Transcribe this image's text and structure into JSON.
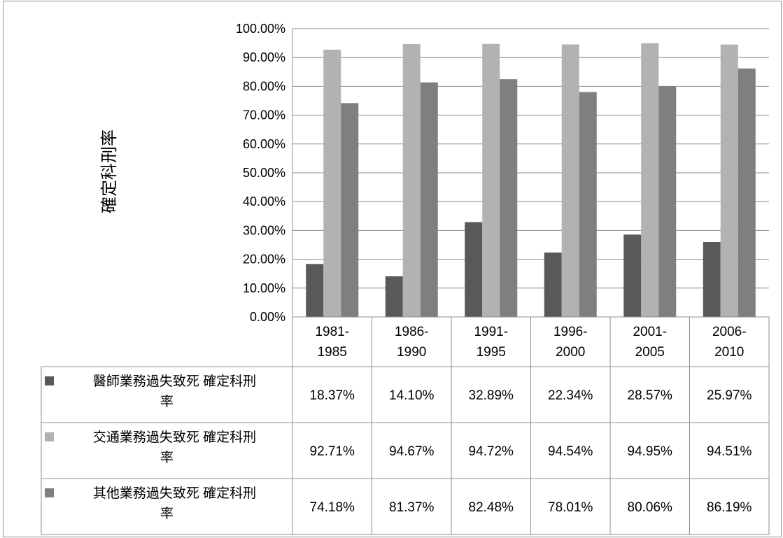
{
  "chart_data": {
    "type": "bar",
    "title": "",
    "xlabel": "",
    "ylabel": "確定科刑率",
    "ylim": [
      0,
      100
    ],
    "y_ticks": [
      "0.00%",
      "10.00%",
      "20.00%",
      "30.00%",
      "40.00%",
      "50.00%",
      "60.00%",
      "70.00%",
      "80.00%",
      "90.00%",
      "100.00%"
    ],
    "grid": true,
    "legend_placement": "data-table",
    "categories": [
      [
        "1981-",
        "1985"
      ],
      [
        "1986-",
        "1990"
      ],
      [
        "1991-",
        "1995"
      ],
      [
        "1996-",
        "2000"
      ],
      [
        "2001-",
        "2005"
      ],
      [
        "2006-",
        "2010"
      ]
    ],
    "series": [
      {
        "name": [
          "醫師業務過失致死 確定科刑",
          "率"
        ],
        "color": "#595959",
        "values": [
          18.37,
          14.1,
          32.89,
          22.34,
          28.57,
          25.97
        ],
        "labels": [
          "18.37%",
          "14.10%",
          "32.89%",
          "22.34%",
          "28.57%",
          "25.97%"
        ]
      },
      {
        "name": [
          "交通業務過失致死 確定科刑",
          "率"
        ],
        "color": "#b2b2b2",
        "values": [
          92.71,
          94.67,
          94.72,
          94.54,
          94.95,
          94.51
        ],
        "labels": [
          "92.71%",
          "94.67%",
          "94.72%",
          "94.54%",
          "94.95%",
          "94.51%"
        ]
      },
      {
        "name": [
          "其他業務過失致死 確定科刑",
          "率"
        ],
        "color": "#7f7f7f",
        "values": [
          74.18,
          81.37,
          82.48,
          78.01,
          80.06,
          86.19
        ],
        "labels": [
          "74.18%",
          "81.37%",
          "82.48%",
          "78.01%",
          "80.06%",
          "86.19%"
        ]
      }
    ]
  }
}
